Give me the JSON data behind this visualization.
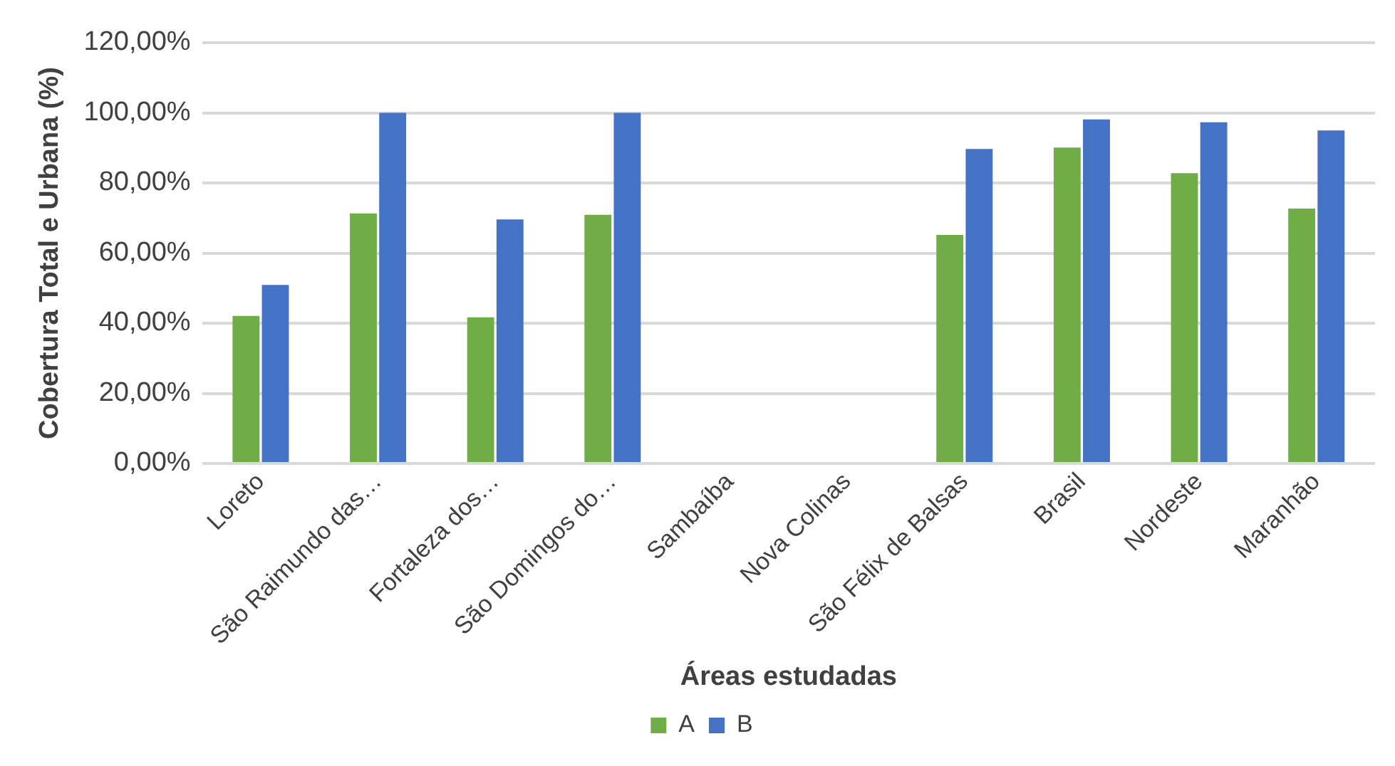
{
  "chart_data": {
    "type": "bar",
    "xlabel": "Áreas estudadas",
    "ylabel": "Cobertura Total e Urbana (%)",
    "categories": [
      "Loreto",
      "São Raimundo das…",
      "Fortaleza dos…",
      "São Domingos do…",
      "Sambaíba",
      "Nova Colinas",
      "São Félix de Balsas",
      "Brasil",
      "Nordeste",
      "Maranhão"
    ],
    "series": [
      {
        "name": "A",
        "color": "#70ad47",
        "values": [
          42.1,
          71.3,
          41.7,
          70.9,
          null,
          null,
          65.2,
          90.1,
          82.8,
          72.7
        ]
      },
      {
        "name": "B",
        "color": "#4472c4",
        "values": [
          50.9,
          100,
          69.6,
          100,
          null,
          null,
          89.7,
          98.1,
          97.3,
          95.0
        ]
      }
    ],
    "ylim": [
      0,
      120
    ],
    "yticks": [
      {
        "value": 0,
        "label": "0,00%"
      },
      {
        "value": 20,
        "label": "20,00%"
      },
      {
        "value": 40,
        "label": "40,00%"
      },
      {
        "value": 60,
        "label": "60,00%"
      },
      {
        "value": 80,
        "label": "80,00%"
      },
      {
        "value": 100,
        "label": "100,00%"
      },
      {
        "value": 120,
        "label": "120,00%"
      }
    ],
    "grid": "y",
    "legend": "bottom"
  }
}
